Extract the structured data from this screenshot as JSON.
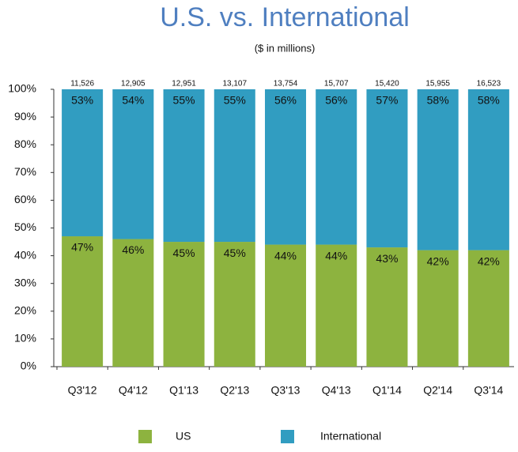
{
  "chart_data": {
    "type": "stacked_bar_percent",
    "title": "U.S. vs. International",
    "subtitle": "($ in millions)",
    "categories": [
      "Q3'12",
      "Q4'12",
      "Q1'13",
      "Q2'13",
      "Q3'13",
      "Q4'13",
      "Q1'14",
      "Q2'14",
      "Q3'14"
    ],
    "series": [
      {
        "name": "US",
        "color": "#8db33f",
        "values": [
          47,
          46,
          45,
          45,
          44,
          44,
          43,
          42,
          42
        ],
        "value_labels": [
          "47%",
          "46%",
          "45%",
          "45%",
          "44%",
          "44%",
          "43%",
          "42%",
          "42%"
        ]
      },
      {
        "name": "International",
        "color": "#319dc1",
        "values": [
          53,
          54,
          55,
          55,
          56,
          56,
          57,
          58,
          58
        ],
        "value_labels": [
          "53%",
          "54%",
          "55%",
          "55%",
          "56%",
          "56%",
          "57%",
          "58%",
          "58%"
        ]
      }
    ],
    "totals": [
      11526,
      12905,
      12951,
      13107,
      13754,
      15707,
      15420,
      15955,
      16523
    ],
    "total_labels": [
      "11,526",
      "12,905",
      "12,951",
      "13,107",
      "13,754",
      "15,707",
      "15,420",
      "15,955",
      "16,523"
    ],
    "ylim": [
      0,
      100
    ],
    "yticks": [
      {
        "value": 0,
        "label": "0%"
      },
      {
        "value": 10,
        "label": "10%"
      },
      {
        "value": 20,
        "label": "20%"
      },
      {
        "value": 30,
        "label": "30%"
      },
      {
        "value": 40,
        "label": "40%"
      },
      {
        "value": 50,
        "label": "50%"
      },
      {
        "value": 60,
        "label": "60%"
      },
      {
        "value": 70,
        "label": "70%"
      },
      {
        "value": 80,
        "label": "80%"
      },
      {
        "value": 90,
        "label": "90%"
      },
      {
        "value": 100,
        "label": "100%"
      }
    ],
    "grid": false
  }
}
